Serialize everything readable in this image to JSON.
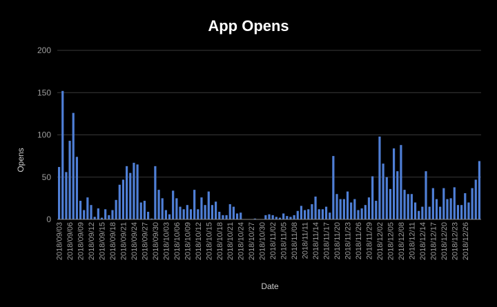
{
  "chart_data": {
    "type": "bar",
    "title": "App Opens",
    "xlabel": "Date",
    "ylabel": "Opens",
    "ylim": [
      0,
      200
    ],
    "yticks": [
      0,
      50,
      100,
      150,
      200
    ],
    "grid": true,
    "colors": {
      "background": "#000000",
      "bar": "#4f7fd6",
      "grid": "#3a3a3a",
      "axis": "#8a8a8a",
      "text": "#9e9e9e",
      "title": "#ffffff"
    },
    "start_date": "2018-09-03",
    "tick_every": 3,
    "values": [
      62,
      152,
      56,
      93,
      126,
      74,
      22,
      11,
      26,
      17,
      3,
      13,
      2,
      12,
      5,
      11,
      23,
      41,
      47,
      63,
      55,
      67,
      65,
      20,
      22,
      9,
      1,
      63,
      35,
      25,
      11,
      6,
      34,
      25,
      15,
      12,
      17,
      12,
      35,
      12,
      26,
      17,
      33,
      17,
      21,
      9,
      5,
      5,
      18,
      15,
      7,
      8,
      0,
      0,
      0,
      1,
      0,
      0,
      5,
      6,
      5,
      3,
      2,
      7,
      4,
      3,
      5,
      10,
      16,
      11,
      12,
      18,
      27,
      12,
      12,
      15,
      8,
      75,
      30,
      24,
      24,
      33,
      20,
      24,
      11,
      13,
      17,
      26,
      51,
      22,
      98,
      66,
      50,
      36,
      84,
      57,
      88,
      35,
      30,
      30,
      20,
      10,
      15,
      57,
      15,
      37,
      24,
      15,
      37,
      24,
      25,
      38,
      17,
      17,
      31,
      20,
      37,
      47,
      69
    ],
    "x_tick_labels": [
      "2018/09/03",
      "2018/09/06",
      "2018/09/09",
      "2018/09/12",
      "2018/09/15",
      "2018/09/18",
      "2018/09/21",
      "2018/09/24",
      "2018/09/27",
      "2018/09/30",
      "2018/10/03",
      "2018/10/06",
      "2018/10/09",
      "2018/10/12",
      "2018/10/15",
      "2018/10/18",
      "2018/10/21",
      "2018/10/24",
      "2018/10/27",
      "2018/10/30",
      "2018/11/02",
      "2018/11/05",
      "2018/11/08",
      "2018/11/11",
      "2018/11/14",
      "2018/11/17",
      "2018/11/20",
      "2018/11/23",
      "2018/11/26",
      "2018/11/29",
      "2018/12/02",
      "2018/12/05",
      "2018/12/08",
      "2018/12/11",
      "2018/12/14",
      "2018/12/17",
      "2018/12/20",
      "2018/12/23",
      "2018/12/26"
    ]
  }
}
